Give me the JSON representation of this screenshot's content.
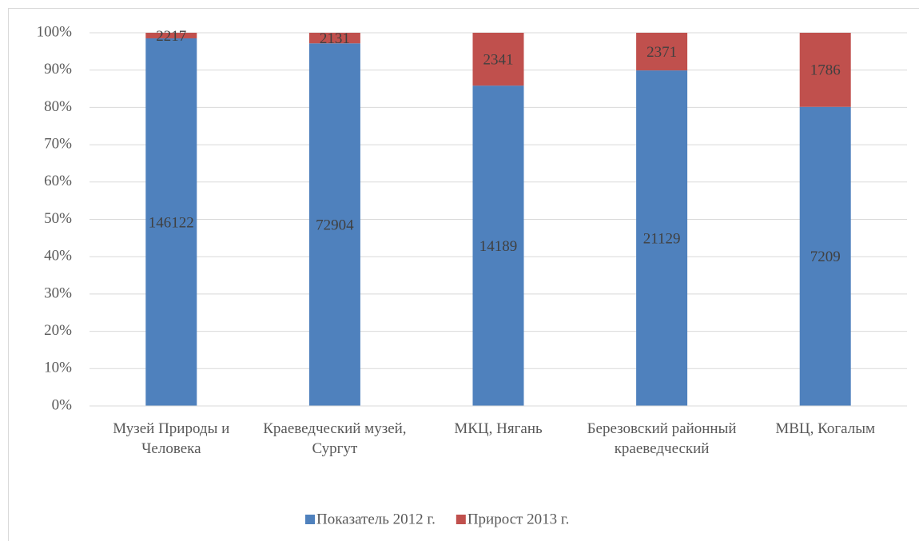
{
  "chart_data": {
    "type": "percent_stacked_bar",
    "categories": [
      "Музей Природы и Человека",
      "Краеведческий музей, Сургут",
      "МКЦ, Нягань",
      "Березовский районный краеведческий",
      "МВЦ, Когалым"
    ],
    "series": [
      {
        "name": "Показатель 2012 г.",
        "color": "#4f81bd",
        "values": [
          146122,
          72904,
          14189,
          21129,
          7209
        ]
      },
      {
        "name": "Прирост 2013 г.",
        "color": "#c0504d",
        "values": [
          2217,
          2131,
          2341,
          2371,
          1786
        ]
      }
    ],
    "ylim": [
      0,
      100
    ],
    "yticks": [
      {
        "value": 0,
        "label": "0%"
      },
      {
        "value": 10,
        "label": "10%"
      },
      {
        "value": 20,
        "label": "20%"
      },
      {
        "value": 30,
        "label": "30%"
      },
      {
        "value": 40,
        "label": "40%"
      },
      {
        "value": 50,
        "label": "50%"
      },
      {
        "value": 60,
        "label": "60%"
      },
      {
        "value": 70,
        "label": "70%"
      },
      {
        "value": 80,
        "label": "80%"
      },
      {
        "value": 90,
        "label": "90%"
      },
      {
        "value": 100,
        "label": "100%"
      }
    ],
    "grid": true,
    "legend": "bottom"
  }
}
